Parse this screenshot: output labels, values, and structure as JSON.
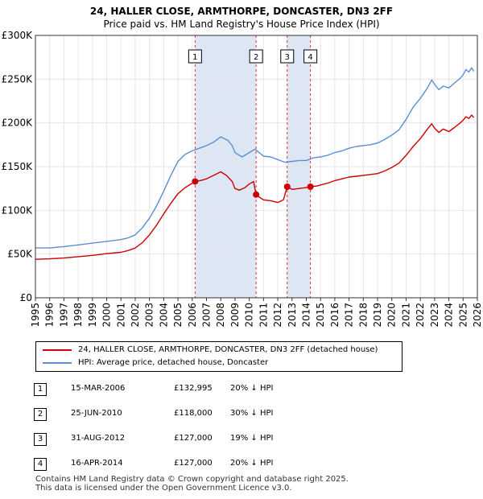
{
  "chart_data": {
    "type": "line",
    "title": "24, HALLER CLOSE, ARMTHORPE, DONCASTER, DN3 2FF",
    "subtitle": "Price paid vs. HM Land Registry's House Price Index (HPI)",
    "xlabel": "",
    "ylabel": "",
    "xlim": [
      1995,
      2026
    ],
    "ylim": [
      0,
      300000
    ],
    "y_ticks": [
      {
        "value": 0,
        "label": "£0"
      },
      {
        "value": 50000,
        "label": "£50K"
      },
      {
        "value": 100000,
        "label": "£100K"
      },
      {
        "value": 150000,
        "label": "£150K"
      },
      {
        "value": 200000,
        "label": "£200K"
      },
      {
        "value": 250000,
        "label": "£250K"
      },
      {
        "value": 300000,
        "label": "£300K"
      }
    ],
    "x_ticks": [
      "1995",
      "1996",
      "1997",
      "1998",
      "1999",
      "2000",
      "2001",
      "2002",
      "2003",
      "2004",
      "2005",
      "2006",
      "2007",
      "2008",
      "2009",
      "2010",
      "2011",
      "2012",
      "2013",
      "2014",
      "2015",
      "2016",
      "2017",
      "2018",
      "2019",
      "2020",
      "2021",
      "2022",
      "2023",
      "2024",
      "2025",
      "2026"
    ],
    "grid": true,
    "colors": {
      "property": "#cc0000",
      "hpi": "#5b8fd1",
      "shade": "#dde6f5",
      "marker_line": "#dd3333"
    },
    "shaded_ranges": [
      [
        2006.2,
        2010.48
      ],
      [
        2012.66,
        2014.29
      ]
    ],
    "series": [
      {
        "name": "24, HALLER CLOSE, ARMTHORPE, DONCASTER, DN3 2FF (detached house)",
        "color": "#cc0000",
        "points": [
          [
            1995.0,
            44000
          ],
          [
            1996.0,
            44500
          ],
          [
            1997.0,
            45500
          ],
          [
            1998.0,
            47000
          ],
          [
            1999.0,
            48500
          ],
          [
            2000.0,
            50500
          ],
          [
            2001.0,
            52000
          ],
          [
            2001.5,
            54000
          ],
          [
            2002.0,
            57000
          ],
          [
            2002.5,
            63000
          ],
          [
            2003.0,
            72000
          ],
          [
            2003.5,
            83000
          ],
          [
            2004.0,
            96000
          ],
          [
            2004.5,
            108000
          ],
          [
            2005.0,
            119000
          ],
          [
            2005.5,
            126000
          ],
          [
            2006.0,
            131000
          ],
          [
            2006.2,
            132995
          ],
          [
            2006.7,
            134500
          ],
          [
            2007.0,
            136000
          ],
          [
            2007.5,
            140000
          ],
          [
            2008.0,
            144000
          ],
          [
            2008.4,
            140000
          ],
          [
            2008.8,
            133000
          ],
          [
            2009.0,
            125000
          ],
          [
            2009.3,
            123000
          ],
          [
            2009.7,
            126000
          ],
          [
            2010.0,
            130000
          ],
          [
            2010.3,
            133000
          ],
          [
            2010.48,
            118000
          ],
          [
            2010.8,
            114000
          ],
          [
            2011.0,
            112000
          ],
          [
            2011.5,
            111000
          ],
          [
            2012.0,
            109000
          ],
          [
            2012.4,
            112000
          ],
          [
            2012.66,
            127000
          ],
          [
            2013.0,
            124000
          ],
          [
            2013.5,
            125000
          ],
          [
            2014.0,
            126000
          ],
          [
            2014.29,
            127000
          ],
          [
            2014.8,
            128000
          ],
          [
            2015.0,
            129000
          ],
          [
            2015.5,
            131000
          ],
          [
            2016.0,
            134000
          ],
          [
            2016.5,
            136000
          ],
          [
            2017.0,
            138000
          ],
          [
            2017.5,
            139000
          ],
          [
            2018.0,
            140000
          ],
          [
            2018.5,
            141000
          ],
          [
            2019.0,
            142000
          ],
          [
            2019.5,
            145000
          ],
          [
            2020.0,
            149000
          ],
          [
            2020.5,
            154000
          ],
          [
            2021.0,
            163000
          ],
          [
            2021.5,
            173000
          ],
          [
            2022.0,
            182000
          ],
          [
            2022.5,
            193000
          ],
          [
            2022.8,
            199000
          ],
          [
            2023.0,
            194000
          ],
          [
            2023.3,
            189000
          ],
          [
            2023.6,
            193000
          ],
          [
            2024.0,
            190000
          ],
          [
            2024.5,
            196000
          ],
          [
            2024.8,
            200000
          ],
          [
            2025.0,
            203000
          ],
          [
            2025.2,
            207000
          ],
          [
            2025.4,
            205000
          ],
          [
            2025.6,
            209000
          ],
          [
            2025.75,
            206000
          ]
        ]
      },
      {
        "name": "HPI: Average price, detached house, Doncaster",
        "color": "#5b8fd1",
        "points": [
          [
            1995.0,
            57000
          ],
          [
            1996.0,
            57000
          ],
          [
            1997.0,
            58500
          ],
          [
            1998.0,
            60500
          ],
          [
            1999.0,
            62500
          ],
          [
            2000.0,
            64500
          ],
          [
            2001.0,
            66500
          ],
          [
            2001.5,
            68500
          ],
          [
            2002.0,
            72000
          ],
          [
            2002.5,
            80000
          ],
          [
            2003.0,
            91000
          ],
          [
            2003.5,
            105000
          ],
          [
            2004.0,
            122000
          ],
          [
            2004.5,
            140000
          ],
          [
            2005.0,
            156000
          ],
          [
            2005.5,
            164000
          ],
          [
            2006.0,
            168000
          ],
          [
            2006.5,
            171000
          ],
          [
            2007.0,
            174000
          ],
          [
            2007.5,
            178000
          ],
          [
            2008.0,
            184000
          ],
          [
            2008.5,
            180000
          ],
          [
            2008.8,
            174000
          ],
          [
            2009.0,
            166000
          ],
          [
            2009.5,
            161000
          ],
          [
            2010.0,
            166000
          ],
          [
            2010.4,
            170000
          ],
          [
            2010.7,
            166000
          ],
          [
            2011.0,
            162000
          ],
          [
            2011.5,
            161000
          ],
          [
            2012.0,
            158000
          ],
          [
            2012.5,
            155000
          ],
          [
            2013.0,
            156000
          ],
          [
            2013.5,
            157000
          ],
          [
            2014.0,
            157000
          ],
          [
            2014.5,
            160000
          ],
          [
            2015.0,
            161000
          ],
          [
            2015.5,
            163000
          ],
          [
            2016.0,
            166000
          ],
          [
            2016.5,
            168000
          ],
          [
            2017.0,
            171000
          ],
          [
            2017.5,
            173000
          ],
          [
            2018.0,
            174000
          ],
          [
            2018.5,
            175000
          ],
          [
            2019.0,
            177000
          ],
          [
            2019.5,
            181000
          ],
          [
            2020.0,
            186000
          ],
          [
            2020.5,
            192000
          ],
          [
            2021.0,
            204000
          ],
          [
            2021.5,
            218000
          ],
          [
            2022.0,
            228000
          ],
          [
            2022.5,
            240000
          ],
          [
            2022.8,
            249000
          ],
          [
            2023.0,
            244000
          ],
          [
            2023.3,
            238000
          ],
          [
            2023.6,
            242000
          ],
          [
            2024.0,
            240000
          ],
          [
            2024.5,
            247000
          ],
          [
            2024.8,
            251000
          ],
          [
            2025.0,
            255000
          ],
          [
            2025.2,
            261000
          ],
          [
            2025.4,
            258000
          ],
          [
            2025.6,
            263000
          ],
          [
            2025.75,
            259000
          ]
        ]
      }
    ],
    "sale_markers": [
      {
        "label": "1",
        "x": 2006.2,
        "y": 132995
      },
      {
        "label": "2",
        "x": 2010.48,
        "y": 118000
      },
      {
        "label": "3",
        "x": 2012.66,
        "y": 127000
      },
      {
        "label": "4",
        "x": 2014.29,
        "y": 127000
      }
    ]
  },
  "legend": {
    "property_label": "24, HALLER CLOSE, ARMTHORPE, DONCASTER, DN3 2FF (detached house)",
    "hpi_label": "HPI: Average price, detached house, Doncaster"
  },
  "sales": [
    {
      "num": "1",
      "date": "15-MAR-2006",
      "price": "£132,995",
      "hpi": "20% ↓ HPI"
    },
    {
      "num": "2",
      "date": "25-JUN-2010",
      "price": "£118,000",
      "hpi": "30% ↓ HPI"
    },
    {
      "num": "3",
      "date": "31-AUG-2012",
      "price": "£127,000",
      "hpi": "19% ↓ HPI"
    },
    {
      "num": "4",
      "date": "16-APR-2014",
      "price": "£127,000",
      "hpi": "20% ↓ HPI"
    }
  ],
  "footer": {
    "line1": "Contains HM Land Registry data © Crown copyright and database right 2025.",
    "line2": "This data is licensed under the Open Government Licence v3.0."
  }
}
